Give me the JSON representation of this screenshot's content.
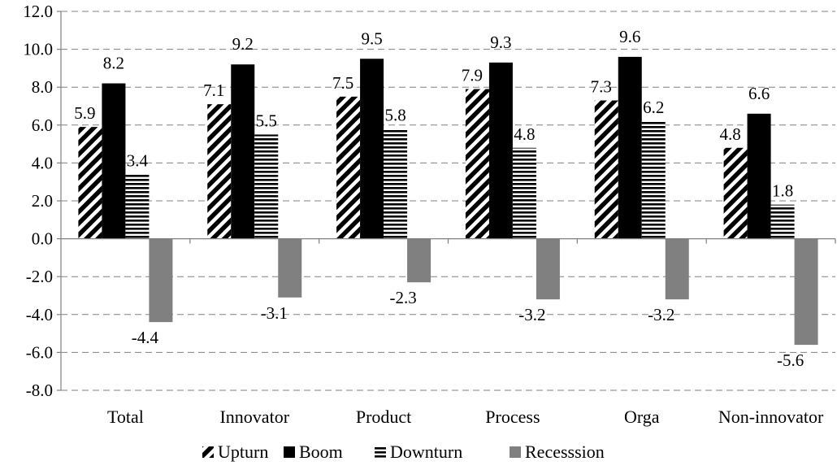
{
  "chart_data": {
    "type": "bar",
    "title": "",
    "xlabel": "",
    "ylabel": "",
    "ylim": [
      -8.0,
      12.0
    ],
    "ytick_step": 2.0,
    "y_ticks": [
      "12.0",
      "10.0",
      "8.0",
      "6.0",
      "4.0",
      "2.0",
      "0.0",
      "-2.0",
      "-4.0",
      "-6.0",
      "-8.0"
    ],
    "grid": true,
    "legend_position": "bottom",
    "categories": [
      "Total",
      "Innovator",
      "Product",
      "Process",
      "Orga",
      "Non-innovator"
    ],
    "series": [
      {
        "name": "Upturn",
        "pattern": "diagonal-hatch",
        "color": "#000000",
        "values": [
          5.9,
          7.1,
          7.5,
          7.9,
          7.3,
          4.8
        ],
        "labels": [
          "5.9",
          "7.1",
          "7.5",
          "7.9",
          "7.3",
          "4.8"
        ]
      },
      {
        "name": "Boom",
        "pattern": "solid",
        "color": "#000000",
        "values": [
          8.2,
          9.2,
          9.5,
          9.3,
          9.6,
          6.6
        ],
        "labels": [
          "8.2",
          "9.2",
          "9.5",
          "9.3",
          "9.6",
          "6.6"
        ]
      },
      {
        "name": "Downturn",
        "pattern": "horizontal-stripes",
        "color": "#000000",
        "values": [
          3.4,
          5.5,
          5.8,
          4.8,
          6.2,
          1.8
        ],
        "labels": [
          "3.4",
          "5.5",
          "5.8",
          "4.8",
          "6.2",
          "1.8"
        ]
      },
      {
        "name": "Recesssion",
        "pattern": "solid",
        "color": "#808080",
        "values": [
          -4.4,
          -3.1,
          -2.3,
          -3.2,
          -3.2,
          -5.6
        ],
        "labels": [
          "-4.4",
          "-3.1",
          "-2.3",
          "-3.2",
          "-3.2",
          "-5.6"
        ]
      }
    ]
  }
}
